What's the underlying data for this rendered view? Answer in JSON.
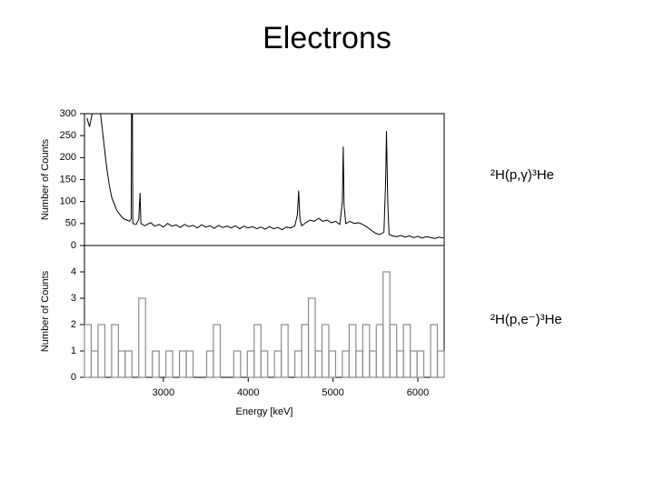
{
  "title": "Electrons",
  "chart_data": [
    {
      "type": "line",
      "ylabel": "Number of Counts",
      "annotation": "²H(p,γ)³He",
      "color": "#000000",
      "xlim": [
        2070,
        6310
      ],
      "ylim": [
        0,
        300
      ],
      "yticks": [
        0,
        50,
        100,
        150,
        200,
        250,
        300
      ],
      "x": [
        2100,
        2130,
        2160,
        2220,
        2260,
        2300,
        2330,
        2360,
        2390,
        2420,
        2450,
        2480,
        2510,
        2540,
        2570,
        2600,
        2620,
        2625,
        2635,
        2640,
        2680,
        2710,
        2725,
        2735,
        2780,
        2850,
        2900,
        2950,
        3000,
        3050,
        3100,
        3150,
        3200,
        3250,
        3300,
        3350,
        3400,
        3450,
        3500,
        3550,
        3600,
        3650,
        3700,
        3750,
        3800,
        3850,
        3900,
        3950,
        4000,
        4050,
        4100,
        4150,
        4200,
        4250,
        4300,
        4350,
        4400,
        4450,
        4500,
        4550,
        4580,
        4595,
        4610,
        4630,
        4680,
        4730,
        4780,
        4830,
        4880,
        4930,
        4980,
        5030,
        5080,
        5110,
        5120,
        5130,
        5150,
        5200,
        5250,
        5300,
        5350,
        5400,
        5450,
        5500,
        5550,
        5600,
        5620,
        5630,
        5645,
        5660,
        5700,
        5750,
        5800,
        5850,
        5900,
        5950,
        6000,
        6050,
        6100,
        6150,
        6200,
        6250,
        6300
      ],
      "values": [
        290,
        270,
        300,
        300,
        300,
        230,
        180,
        140,
        110,
        95,
        80,
        72,
        65,
        60,
        58,
        55,
        60,
        300,
        300,
        50,
        48,
        60,
        120,
        50,
        45,
        52,
        44,
        48,
        42,
        50,
        44,
        47,
        41,
        48,
        43,
        46,
        40,
        47,
        42,
        45,
        39,
        46,
        41,
        44,
        40,
        45,
        38,
        44,
        40,
        43,
        38,
        42,
        37,
        43,
        38,
        41,
        36,
        42,
        40,
        45,
        70,
        125,
        60,
        45,
        52,
        58,
        55,
        62,
        55,
        58,
        52,
        55,
        48,
        100,
        225,
        90,
        50,
        55,
        50,
        52,
        48,
        42,
        35,
        28,
        25,
        30,
        150,
        260,
        100,
        25,
        22,
        20,
        23,
        19,
        22,
        18,
        21,
        17,
        20,
        18,
        16,
        19,
        17
      ]
    },
    {
      "type": "histogram",
      "ylabel": "Number of Counts",
      "xlabel": "Energy [keV]",
      "annotation": "²H(p,e⁻)³He",
      "color": "#8c8c8c",
      "xlim": [
        2070,
        6310
      ],
      "ylim": [
        0,
        5
      ],
      "yticks": [
        0,
        1,
        2,
        3,
        4
      ],
      "xticks": [
        3000,
        4000,
        5000,
        6000
      ],
      "bins": [
        2070,
        2150,
        2230,
        2310,
        2390,
        2470,
        2550,
        2630,
        2710,
        2790,
        2870,
        2950,
        3030,
        3110,
        3190,
        3270,
        3350,
        3430,
        3510,
        3590,
        3670,
        3750,
        3830,
        3910,
        3990,
        4070,
        4150,
        4230,
        4310,
        4390,
        4470,
        4550,
        4630,
        4710,
        4790,
        4870,
        4950,
        5030,
        5110,
        5190,
        5270,
        5350,
        5430,
        5510,
        5590,
        5670,
        5750,
        5830,
        5910,
        5990,
        6070,
        6150,
        6230,
        6310
      ],
      "values": [
        2,
        1,
        2,
        0,
        2,
        1,
        1,
        0,
        3,
        0,
        1,
        0,
        1,
        0,
        1,
        1,
        0,
        0,
        1,
        2,
        0,
        0,
        1,
        0,
        1,
        2,
        1,
        0,
        1,
        2,
        0,
        1,
        2,
        3,
        1,
        2,
        1,
        0,
        1,
        2,
        1,
        2,
        1,
        2,
        4,
        2,
        1,
        2,
        1,
        1,
        0,
        2,
        1
      ]
    }
  ]
}
